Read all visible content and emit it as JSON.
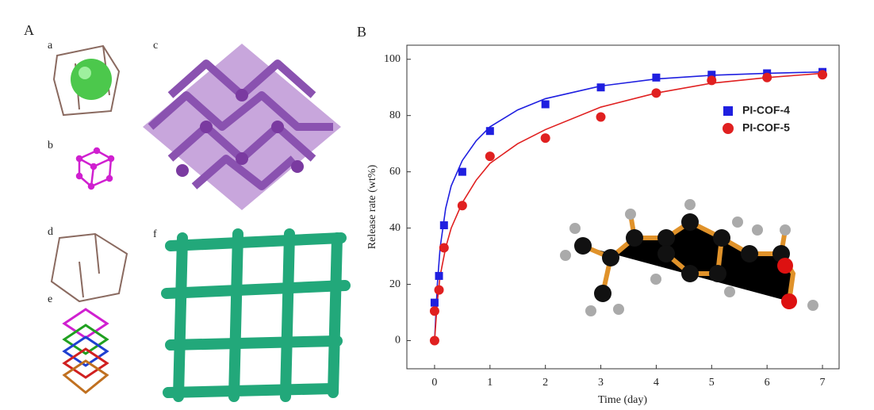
{
  "panel_labels": {
    "A": "A",
    "a": "a",
    "b": "b",
    "c": "c",
    "d": "d",
    "e": "e",
    "f": "f",
    "B": "B"
  },
  "chart_data": {
    "type": "scatter",
    "x_label": "Time (day)",
    "y_label": "Release rate (wt%)",
    "xlim": [
      -0.5,
      7.3
    ],
    "ylim": [
      -10,
      105
    ],
    "xticks": [
      0,
      1,
      2,
      3,
      4,
      5,
      6,
      7
    ],
    "yticks": [
      0,
      20,
      40,
      60,
      80,
      100
    ],
    "legend": "upper right",
    "series": [
      {
        "name": "PI-COF-4",
        "color": "#1f1fe0",
        "marker": "square",
        "x": [
          0,
          0.08,
          0.17,
          0.5,
          1,
          2,
          3,
          4,
          5,
          6,
          7
        ],
        "values": [
          13.5,
          23,
          41,
          60,
          74.5,
          84,
          90,
          93.5,
          94.5,
          95,
          95.5
        ],
        "fit": {
          "x": [
            0,
            0.05,
            0.1,
            0.2,
            0.3,
            0.5,
            0.75,
            1,
            1.5,
            2,
            3,
            4,
            5,
            6,
            7
          ],
          "values": [
            0,
            20,
            33,
            47,
            55,
            64,
            71,
            76,
            82,
            86,
            90.5,
            93,
            94.3,
            95,
            95.5
          ]
        }
      },
      {
        "name": "PI-COF-5",
        "color": "#e02020",
        "marker": "circle",
        "x": [
          0,
          0,
          0.08,
          0.17,
          0.5,
          1,
          2,
          3,
          4,
          5,
          6,
          7
        ],
        "values": [
          0,
          10.5,
          18,
          33,
          48,
          65.5,
          72,
          79.5,
          88,
          92.5,
          93.5,
          94.5
        ],
        "fit": {
          "x": [
            0,
            0.05,
            0.1,
            0.2,
            0.3,
            0.5,
            0.75,
            1,
            1.5,
            2,
            3,
            4,
            5,
            6,
            7
          ],
          "values": [
            0,
            14,
            23,
            33,
            40,
            49,
            57,
            63,
            70,
            75,
            83,
            88,
            91.5,
            93.5,
            95
          ]
        }
      }
    ]
  }
}
